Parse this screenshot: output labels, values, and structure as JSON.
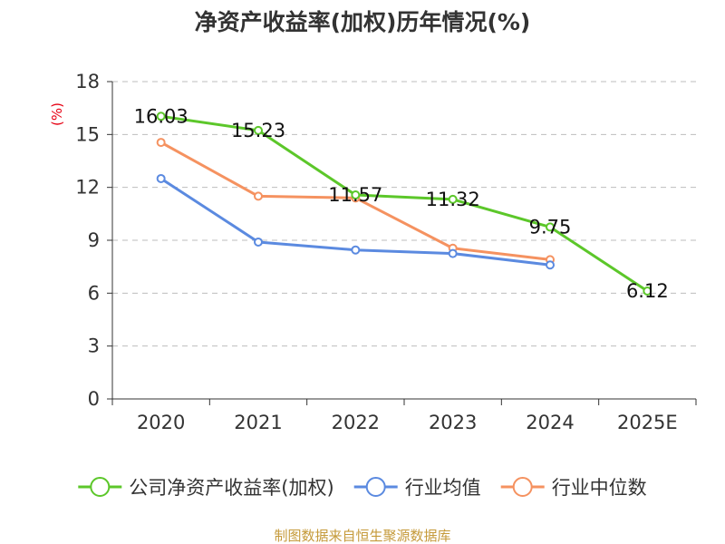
{
  "chart_data": {
    "type": "line",
    "title": "净资产收益率(加权)历年情况(%)",
    "unit_label": "(%)",
    "categories": [
      "2020",
      "2021",
      "2022",
      "2023",
      "2024",
      "2025E"
    ],
    "ylim": [
      0,
      18
    ],
    "yticks": [
      0,
      3,
      6,
      9,
      12,
      15,
      18
    ],
    "grid": true,
    "legend_position": "bottom",
    "series": [
      {
        "name": "公司净资产收益率(加权)",
        "color": "#5cc72a",
        "values": [
          16.03,
          15.23,
          11.57,
          11.32,
          9.75,
          6.12
        ],
        "labels": [
          "16.03",
          "15.23",
          "11.57",
          "11.32",
          "9.75",
          "6.12"
        ]
      },
      {
        "name": "行业均值",
        "color": "#5b8ae0",
        "values": [
          12.5,
          8.9,
          8.45,
          8.25,
          7.6,
          null
        ]
      },
      {
        "name": "行业中位数",
        "color": "#f59260",
        "values": [
          14.55,
          11.5,
          11.4,
          8.55,
          7.9,
          null
        ]
      }
    ],
    "source": "制图数据来自恒生聚源数据库"
  }
}
